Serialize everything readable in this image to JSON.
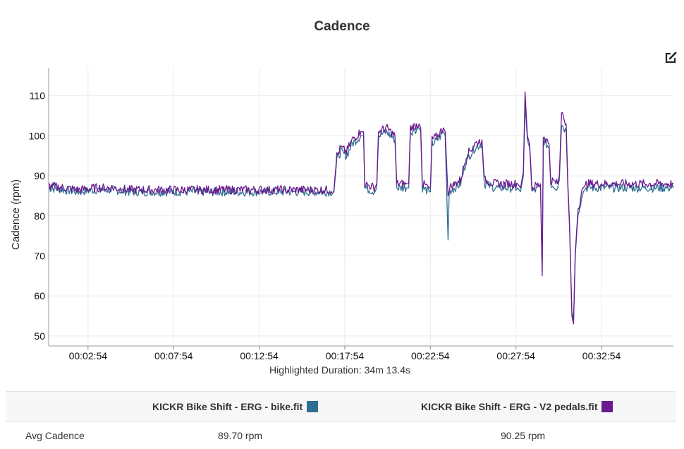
{
  "title": "Cadence",
  "icons": {
    "edit": "edit-icon"
  },
  "chart_data": {
    "type": "line",
    "title": "Cadence",
    "ylabel": "Cadence (rpm)",
    "xlabel": "",
    "ylim": [
      47.5,
      117
    ],
    "yticks": [
      50,
      60,
      70,
      80,
      90,
      100,
      110
    ],
    "x_unit": "seconds",
    "xlim": [
      36,
      2226
    ],
    "xticks": [
      {
        "t": 174,
        "label": "00:02:54"
      },
      {
        "t": 474,
        "label": "00:07:54"
      },
      {
        "t": 774,
        "label": "00:12:54"
      },
      {
        "t": 1074,
        "label": "00:17:54"
      },
      {
        "t": 1374,
        "label": "00:22:54"
      },
      {
        "t": 1674,
        "label": "00:27:54"
      },
      {
        "t": 1974,
        "label": "00:32:54"
      }
    ],
    "grid": true,
    "summary": "Highlighted Duration: 34m 13.4s",
    "series": [
      {
        "name": "KICKR Bike Shift - ERG - bike.fit",
        "color": "#2e6f91",
        "points": [
          [
            36,
            87
          ],
          [
            90,
            86.5
          ],
          [
            140,
            86
          ],
          [
            200,
            86.5
          ],
          [
            260,
            86.5
          ],
          [
            320,
            86
          ],
          [
            380,
            86
          ],
          [
            440,
            86
          ],
          [
            500,
            86
          ],
          [
            560,
            86
          ],
          [
            620,
            86
          ],
          [
            680,
            86
          ],
          [
            740,
            86
          ],
          [
            800,
            86
          ],
          [
            860,
            86
          ],
          [
            920,
            86
          ],
          [
            960,
            86
          ],
          [
            1000,
            86
          ],
          [
            1036,
            86
          ],
          [
            1046,
            94
          ],
          [
            1060,
            96
          ],
          [
            1080,
            95
          ],
          [
            1100,
            98
          ],
          [
            1130,
            100
          ],
          [
            1140,
            100
          ],
          [
            1144,
            87
          ],
          [
            1180,
            86
          ],
          [
            1186,
            87
          ],
          [
            1192,
            100
          ],
          [
            1220,
            101
          ],
          [
            1250,
            99
          ],
          [
            1256,
            87
          ],
          [
            1290,
            87
          ],
          [
            1298,
            87
          ],
          [
            1304,
            101
          ],
          [
            1335,
            102
          ],
          [
            1340,
            101
          ],
          [
            1346,
            87
          ],
          [
            1370,
            86
          ],
          [
            1374,
            86
          ],
          [
            1380,
            98
          ],
          [
            1400,
            99
          ],
          [
            1420,
            101
          ],
          [
            1426,
            100
          ],
          [
            1436,
            74
          ],
          [
            1440,
            86
          ],
          [
            1460,
            87
          ],
          [
            1480,
            88
          ],
          [
            1500,
            94
          ],
          [
            1530,
            97
          ],
          [
            1555,
            98
          ],
          [
            1563,
            88
          ],
          [
            1600,
            87
          ],
          [
            1640,
            87
          ],
          [
            1680,
            87
          ],
          [
            1690,
            86
          ],
          [
            1700,
            90
          ],
          [
            1706,
            108
          ],
          [
            1714,
            99
          ],
          [
            1722,
            97
          ],
          [
            1730,
            86
          ],
          [
            1760,
            87
          ],
          [
            1766,
            66
          ],
          [
            1770,
            99
          ],
          [
            1790,
            97
          ],
          [
            1796,
            88
          ],
          [
            1820,
            87
          ],
          [
            1826,
            89
          ],
          [
            1834,
            103
          ],
          [
            1850,
            101
          ],
          [
            1856,
            87
          ],
          [
            1862,
            77
          ],
          [
            1870,
            56
          ],
          [
            1876,
            54
          ],
          [
            1882,
            70
          ],
          [
            1892,
            81
          ],
          [
            1910,
            86
          ],
          [
            1920,
            87
          ],
          [
            2010,
            87
          ],
          [
            2050,
            87
          ],
          [
            2100,
            87
          ],
          [
            2150,
            87
          ],
          [
            2200,
            87
          ],
          [
            2226,
            87
          ]
        ]
      },
      {
        "name": "KICKR Bike Shift - ERG - V2 pedals.fit",
        "color": "#6a1b8f",
        "points": [
          [
            36,
            87.5
          ],
          [
            90,
            87
          ],
          [
            140,
            86.5
          ],
          [
            200,
            87
          ],
          [
            260,
            87
          ],
          [
            320,
            86.5
          ],
          [
            380,
            86.5
          ],
          [
            440,
            86.5
          ],
          [
            500,
            86.5
          ],
          [
            560,
            86.5
          ],
          [
            620,
            86.5
          ],
          [
            680,
            86.5
          ],
          [
            740,
            86.5
          ],
          [
            800,
            86.5
          ],
          [
            860,
            86.5
          ],
          [
            920,
            86.5
          ],
          [
            960,
            86.5
          ],
          [
            1000,
            86.5
          ],
          [
            1036,
            86.5
          ],
          [
            1046,
            95
          ],
          [
            1060,
            97
          ],
          [
            1080,
            96
          ],
          [
            1100,
            99
          ],
          [
            1130,
            101
          ],
          [
            1140,
            101
          ],
          [
            1144,
            88
          ],
          [
            1180,
            87
          ],
          [
            1186,
            88
          ],
          [
            1192,
            101
          ],
          [
            1220,
            102
          ],
          [
            1250,
            100
          ],
          [
            1256,
            88
          ],
          [
            1290,
            88
          ],
          [
            1298,
            88
          ],
          [
            1304,
            102
          ],
          [
            1335,
            103
          ],
          [
            1340,
            102
          ],
          [
            1346,
            88
          ],
          [
            1370,
            87
          ],
          [
            1374,
            87
          ],
          [
            1380,
            99
          ],
          [
            1400,
            100
          ],
          [
            1420,
            102
          ],
          [
            1426,
            101
          ],
          [
            1436,
            85
          ],
          [
            1440,
            87
          ],
          [
            1460,
            88
          ],
          [
            1480,
            89
          ],
          [
            1500,
            95
          ],
          [
            1530,
            98
          ],
          [
            1555,
            99
          ],
          [
            1563,
            89
          ],
          [
            1600,
            88
          ],
          [
            1640,
            88
          ],
          [
            1680,
            88
          ],
          [
            1690,
            87
          ],
          [
            1700,
            91
          ],
          [
            1706,
            111
          ],
          [
            1714,
            100
          ],
          [
            1722,
            98
          ],
          [
            1730,
            87
          ],
          [
            1760,
            88
          ],
          [
            1766,
            65
          ],
          [
            1770,
            100
          ],
          [
            1790,
            98
          ],
          [
            1796,
            89
          ],
          [
            1820,
            88
          ],
          [
            1826,
            90
          ],
          [
            1834,
            106
          ],
          [
            1850,
            103
          ],
          [
            1856,
            88
          ],
          [
            1862,
            78
          ],
          [
            1870,
            55
          ],
          [
            1876,
            53
          ],
          [
            1882,
            71
          ],
          [
            1892,
            82
          ],
          [
            1910,
            87
          ],
          [
            1920,
            88
          ],
          [
            2010,
            88
          ],
          [
            2050,
            88
          ],
          [
            2100,
            88
          ],
          [
            2150,
            88
          ],
          [
            2200,
            88
          ],
          [
            2226,
            88
          ]
        ]
      }
    ]
  },
  "table": {
    "series_headers": [
      {
        "label": "KICKR Bike Shift - ERG - bike.fit",
        "color": "#2e6f91"
      },
      {
        "label": "KICKR Bike Shift - ERG - V2 pedals.fit",
        "color": "#6a1b8f"
      }
    ],
    "rows": [
      {
        "label": "Avg Cadence",
        "values": [
          "89.70 rpm",
          "90.25 rpm"
        ]
      }
    ]
  }
}
